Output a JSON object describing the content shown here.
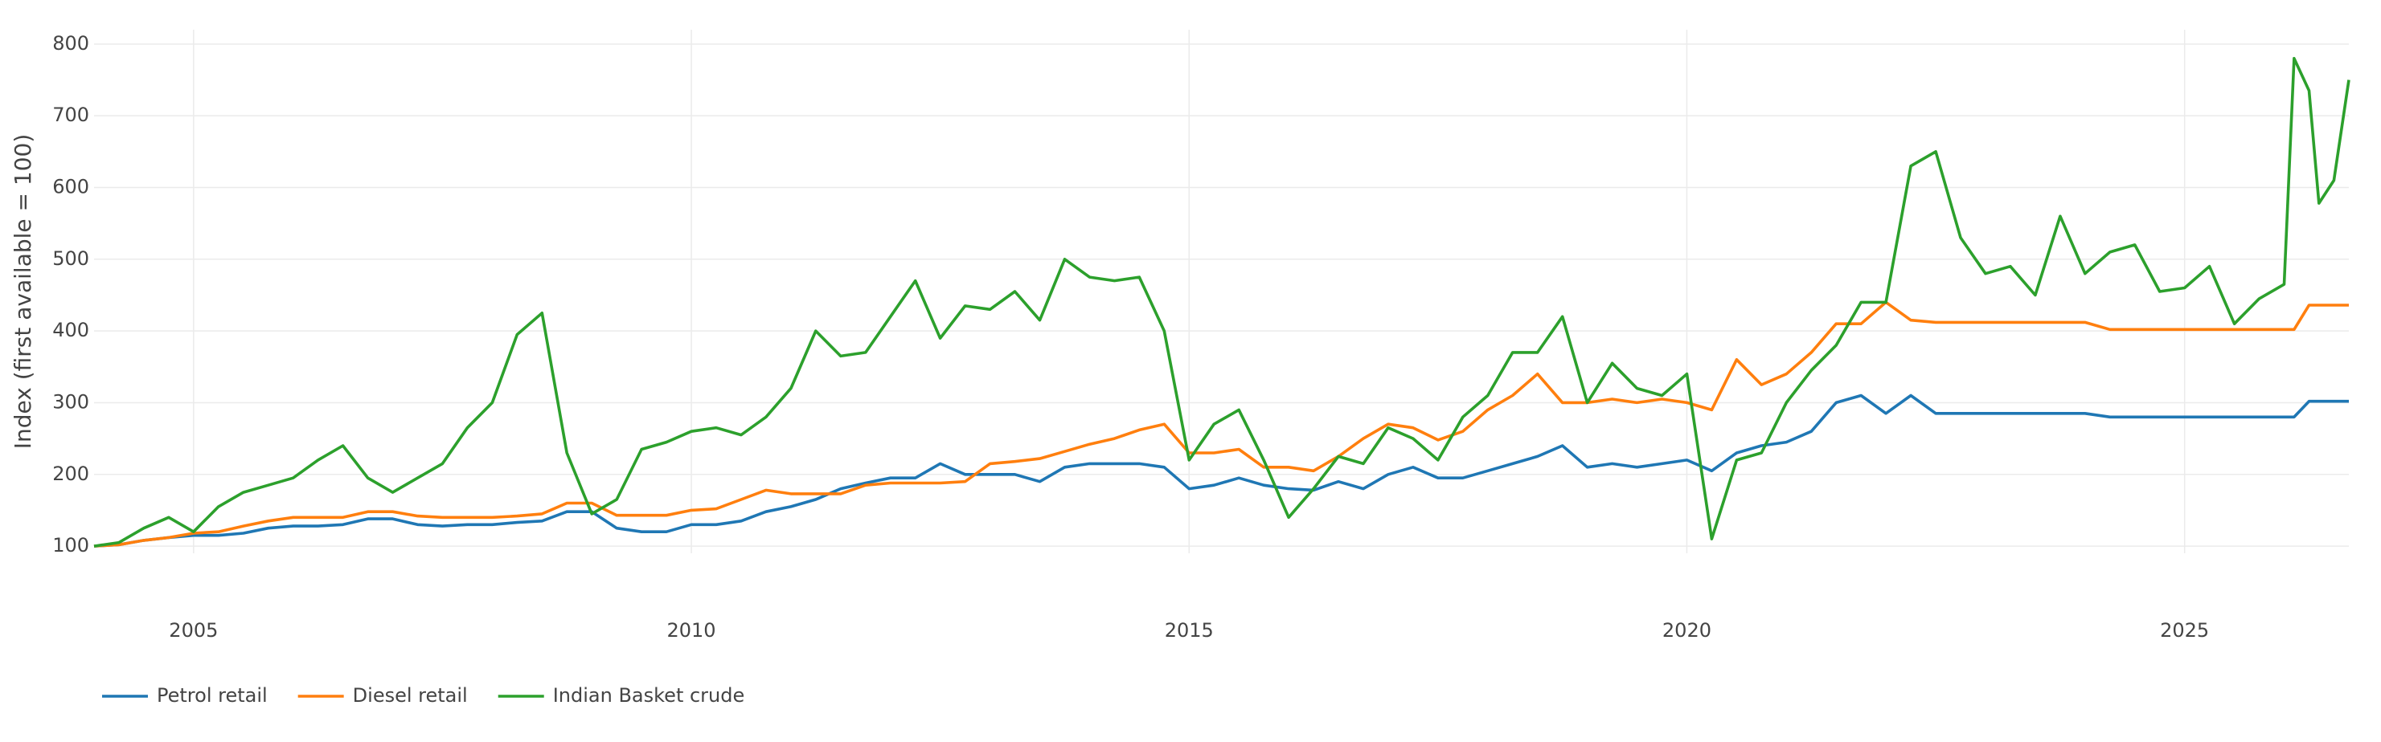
{
  "chart_data": {
    "type": "line",
    "y_label": "Index (first available = 100)",
    "x": [
      2004,
      2004.25,
      2004.5,
      2004.75,
      2005,
      2005.25,
      2005.5,
      2005.75,
      2006,
      2006.25,
      2006.5,
      2006.75,
      2007,
      2007.25,
      2007.5,
      2007.75,
      2008,
      2008.25,
      2008.5,
      2008.75,
      2009,
      2009.25,
      2009.5,
      2009.75,
      2010,
      2010.25,
      2010.5,
      2010.75,
      2011,
      2011.25,
      2011.5,
      2011.75,
      2012,
      2012.25,
      2012.5,
      2012.75,
      2013,
      2013.25,
      2013.5,
      2013.75,
      2014,
      2014.25,
      2014.5,
      2014.75,
      2015,
      2015.25,
      2015.5,
      2015.75,
      2016,
      2016.25,
      2016.5,
      2016.75,
      2017,
      2017.25,
      2017.5,
      2017.75,
      2018,
      2018.25,
      2018.5,
      2018.75,
      2019,
      2019.25,
      2019.5,
      2019.75,
      2020,
      2020.25,
      2020.5,
      2020.75,
      2021,
      2021.25,
      2021.5,
      2021.75,
      2022,
      2022.25,
      2022.5,
      2022.75,
      2023,
      2023.25,
      2023.5,
      2023.75,
      2024,
      2024.25,
      2024.5,
      2024.75,
      2025,
      2025.25,
      2025.5,
      2025.75,
      2026,
      2026.1,
      2026.25,
      2026.35,
      2026.5,
      2026.65
    ],
    "series": [
      {
        "name": "Petrol retail",
        "color": "#1f77b4",
        "values": [
          100,
          102,
          108,
          112,
          115,
          115,
          118,
          125,
          128,
          128,
          130,
          138,
          138,
          130,
          128,
          130,
          130,
          133,
          135,
          148,
          148,
          125,
          120,
          120,
          130,
          130,
          135,
          148,
          155,
          165,
          180,
          188,
          195,
          195,
          215,
          200,
          200,
          200,
          190,
          210,
          215,
          215,
          215,
          210,
          180,
          185,
          195,
          185,
          180,
          178,
          190,
          180,
          200,
          210,
          195,
          195,
          205,
          215,
          225,
          240,
          210,
          215,
          210,
          215,
          220,
          205,
          230,
          240,
          245,
          260,
          300,
          310,
          285,
          310,
          285,
          285,
          285,
          285,
          285,
          285,
          285,
          280,
          280,
          280,
          280,
          280,
          280,
          280,
          280,
          280,
          302,
          302,
          302,
          302
        ]
      },
      {
        "name": "Diesel retail",
        "color": "#ff7f0e",
        "values": [
          100,
          102,
          108,
          112,
          118,
          120,
          128,
          135,
          140,
          140,
          140,
          148,
          148,
          142,
          140,
          140,
          140,
          142,
          145,
          160,
          160,
          143,
          143,
          143,
          150,
          152,
          165,
          178,
          173,
          173,
          173,
          185,
          188,
          188,
          188,
          190,
          215,
          218,
          222,
          232,
          242,
          250,
          262,
          270,
          230,
          230,
          235,
          210,
          210,
          205,
          225,
          250,
          270,
          265,
          248,
          260,
          290,
          310,
          340,
          300,
          300,
          305,
          300,
          305,
          300,
          290,
          360,
          325,
          340,
          370,
          410,
          410,
          440,
          415,
          412,
          412,
          412,
          412,
          412,
          412,
          412,
          402,
          402,
          402,
          402,
          402,
          402,
          402,
          402,
          402,
          436,
          436,
          436,
          436
        ]
      },
      {
        "name": "Indian Basket crude",
        "color": "#2ca02c",
        "values": [
          100,
          105,
          125,
          140,
          120,
          155,
          175,
          185,
          195,
          220,
          240,
          195,
          175,
          195,
          215,
          265,
          300,
          395,
          425,
          230,
          145,
          165,
          235,
          245,
          260,
          265,
          255,
          280,
          320,
          400,
          365,
          370,
          420,
          470,
          390,
          435,
          430,
          455,
          415,
          500,
          475,
          470,
          475,
          400,
          220,
          270,
          290,
          220,
          140,
          180,
          225,
          215,
          265,
          250,
          220,
          280,
          310,
          370,
          370,
          420,
          300,
          355,
          320,
          310,
          340,
          110,
          220,
          230,
          300,
          345,
          380,
          440,
          440,
          630,
          650,
          530,
          480,
          490,
          450,
          560,
          480,
          510,
          520,
          455,
          460,
          490,
          410,
          445,
          465,
          780,
          735,
          578,
          610,
          750
        ]
      }
    ],
    "xlim": [
      2004,
      2026.65
    ],
    "xticks": [
      2005,
      2010,
      2015,
      2020,
      2025
    ],
    "ylim": [
      90,
      820
    ],
    "yticks": [
      100,
      200,
      300,
      400,
      500,
      600,
      700,
      800
    ],
    "grid": true,
    "legend": "bottom-left"
  }
}
